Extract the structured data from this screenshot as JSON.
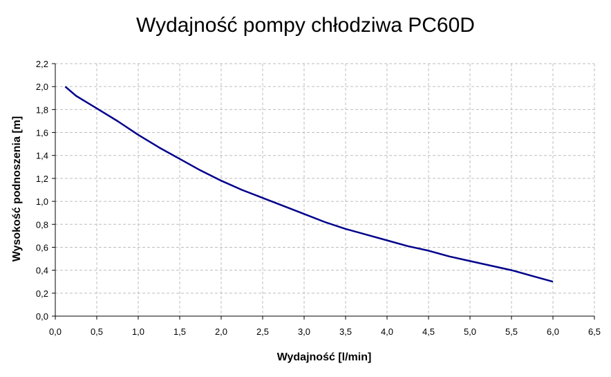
{
  "chart_data": {
    "type": "line",
    "title": "Wydajność pompy chłodziwa PC60D",
    "xlabel": "Wydajność [l/min]",
    "ylabel": "Wysokość podnoszenia [m]",
    "xlim": [
      0,
      6.5
    ],
    "ylim": [
      0,
      2.2
    ],
    "x_ticks": [
      "0,0",
      "0,5",
      "1,0",
      "1,5",
      "2,0",
      "2,5",
      "3,0",
      "3,5",
      "4,0",
      "4,5",
      "5,0",
      "5,5",
      "6,0",
      "6,5"
    ],
    "y_ticks": [
      "0,0",
      "0,2",
      "0,4",
      "0,6",
      "0,8",
      "1,0",
      "1,2",
      "1,4",
      "1,6",
      "1,8",
      "2,0",
      "2,2"
    ],
    "grid": true,
    "series_color": "#00008b",
    "series": [
      {
        "x": [
          0.12,
          0.25,
          0.5,
          0.75,
          1.0,
          1.25,
          1.5,
          1.75,
          2.0,
          2.25,
          2.5,
          2.75,
          3.0,
          3.25,
          3.5,
          3.75,
          4.0,
          4.25,
          4.5,
          4.75,
          5.0,
          5.25,
          5.5,
          5.75,
          6.0
        ],
        "y": [
          2.0,
          1.92,
          1.81,
          1.7,
          1.58,
          1.47,
          1.37,
          1.27,
          1.18,
          1.1,
          1.03,
          0.96,
          0.89,
          0.82,
          0.76,
          0.71,
          0.66,
          0.61,
          0.57,
          0.52,
          0.48,
          0.44,
          0.4,
          0.35,
          0.3
        ]
      }
    ]
  }
}
